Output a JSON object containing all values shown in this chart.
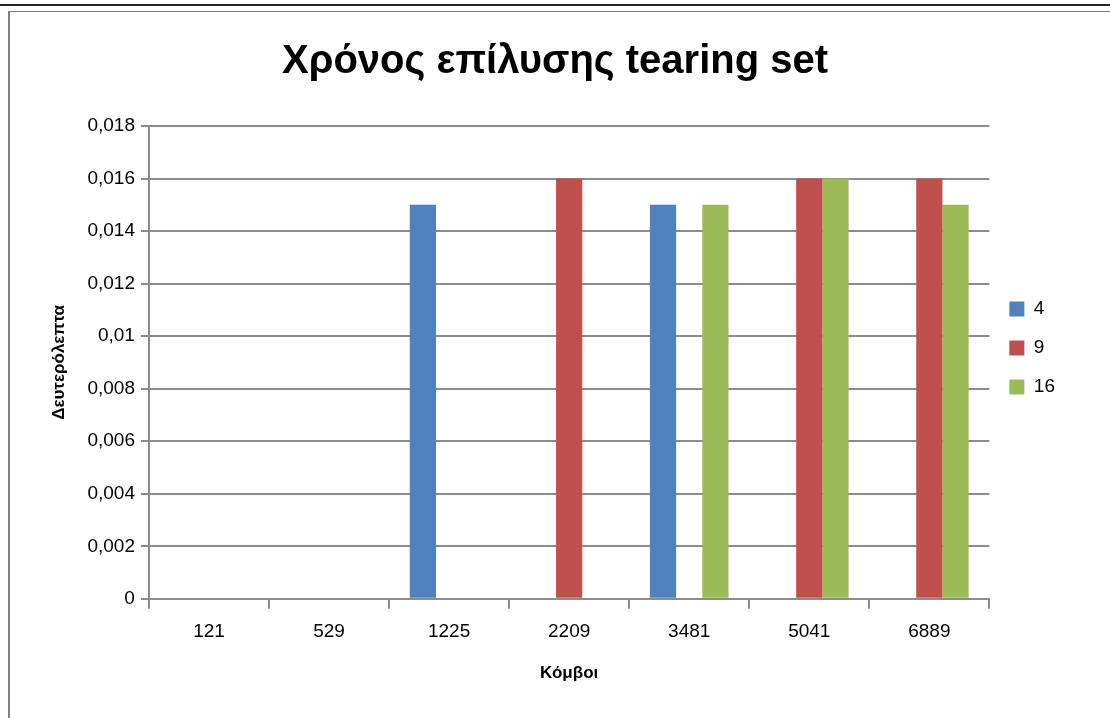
{
  "chart_data": {
    "type": "bar",
    "title": "Χρόνος επίλυσης tearing set",
    "xlabel": "Κόμβοι",
    "ylabel": "Δευτερόλεπτα",
    "categories": [
      "121",
      "529",
      "1225",
      "2209",
      "3481",
      "5041",
      "6889"
    ],
    "series": [
      {
        "name": "4",
        "color": "#4f81bd",
        "values": [
          0,
          0,
          0.015,
          0,
          0.015,
          0,
          0
        ]
      },
      {
        "name": "9",
        "color": "#c0504d",
        "values": [
          0,
          0,
          0,
          0.016,
          0,
          0.016,
          0.016
        ]
      },
      {
        "name": "16",
        "color": "#9bbb59",
        "values": [
          0,
          0,
          0,
          0,
          0.015,
          0.016,
          0.015
        ]
      }
    ],
    "ylim": [
      0,
      0.018
    ],
    "yticks": [
      0,
      {
        "value": 0.002,
        "label": "0,002"
      },
      {
        "value": 0.004,
        "label": "0,004"
      },
      {
        "value": 0.006,
        "label": "0,006"
      },
      {
        "value": 0.008,
        "label": "0,008"
      },
      {
        "value": 0.01,
        "label": "0,01"
      },
      {
        "value": 0.012,
        "label": "0,012"
      },
      {
        "value": 0.014,
        "label": "0,014"
      },
      {
        "value": 0.016,
        "label": "0,016"
      },
      {
        "value": 0.018,
        "label": "0,018"
      }
    ],
    "grid": "y",
    "legend": "right"
  }
}
